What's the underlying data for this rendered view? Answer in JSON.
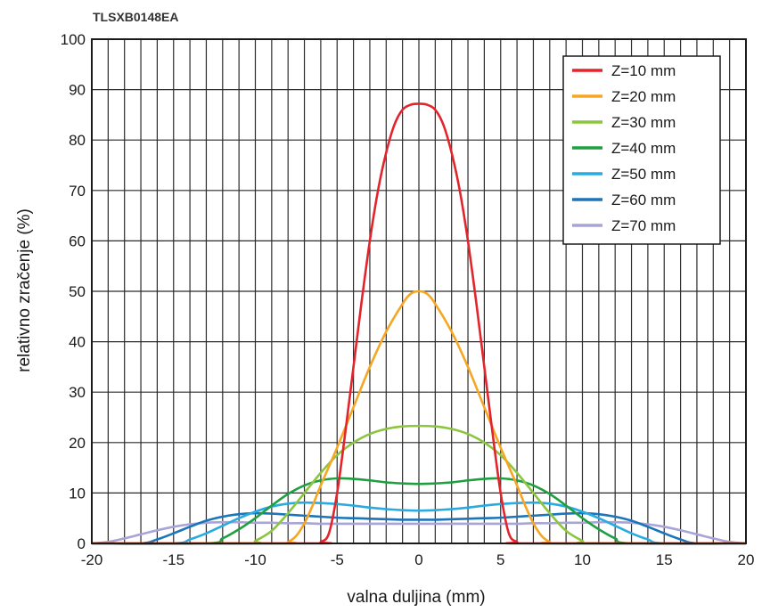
{
  "figure_code": "TLSXB0148EA",
  "chart_data": {
    "type": "line",
    "xlabel": "valna duljina (mm)",
    "ylabel": "relativno zračenje (%)",
    "xlim": [
      -20,
      20
    ],
    "ylim": [
      0,
      100
    ],
    "x_ticks": [
      -20,
      -15,
      -10,
      -5,
      0,
      5,
      10,
      15,
      20
    ],
    "y_ticks": [
      0,
      10,
      20,
      30,
      40,
      50,
      60,
      70,
      80,
      90,
      100
    ],
    "grid": true,
    "legend_position": "top-right",
    "series": [
      {
        "name": "Z=10 mm",
        "color": "#e3242b",
        "points": [
          [
            -20,
            0
          ],
          [
            -6.5,
            0
          ],
          [
            -6,
            0.3
          ],
          [
            -5.5,
            2
          ],
          [
            -5,
            10
          ],
          [
            -4.5,
            22
          ],
          [
            -4,
            35
          ],
          [
            -3.5,
            48
          ],
          [
            -3,
            60
          ],
          [
            -2.5,
            70
          ],
          [
            -2,
            77.5
          ],
          [
            -1.5,
            83
          ],
          [
            -1,
            86
          ],
          [
            -0.5,
            87
          ],
          [
            0,
            87.2
          ],
          [
            0.5,
            87
          ],
          [
            1,
            86
          ],
          [
            1.5,
            83
          ],
          [
            2,
            77.5
          ],
          [
            2.5,
            70
          ],
          [
            3,
            60
          ],
          [
            3.5,
            48
          ],
          [
            4,
            35
          ],
          [
            4.5,
            22
          ],
          [
            5,
            10
          ],
          [
            5.5,
            2
          ],
          [
            6,
            0.3
          ],
          [
            6.5,
            0
          ],
          [
            20,
            0
          ]
        ]
      },
      {
        "name": "Z=20 mm",
        "color": "#f5a623",
        "points": [
          [
            -20,
            0
          ],
          [
            -8.5,
            0
          ],
          [
            -8,
            0.3
          ],
          [
            -7.5,
            1.5
          ],
          [
            -7,
            4
          ],
          [
            -6.5,
            7.5
          ],
          [
            -6,
            11.5
          ],
          [
            -5,
            19
          ],
          [
            -4,
            27
          ],
          [
            -3,
            35
          ],
          [
            -2,
            42
          ],
          [
            -1,
            47.5
          ],
          [
            -0.5,
            49.5
          ],
          [
            0,
            50
          ],
          [
            0.5,
            49.5
          ],
          [
            1,
            47.5
          ],
          [
            2,
            42
          ],
          [
            3,
            35
          ],
          [
            4,
            27
          ],
          [
            5,
            19
          ],
          [
            6,
            11.5
          ],
          [
            6.5,
            7.5
          ],
          [
            7,
            4
          ],
          [
            7.5,
            1.5
          ],
          [
            8,
            0.3
          ],
          [
            8.5,
            0
          ],
          [
            20,
            0
          ]
        ]
      },
      {
        "name": "Z=30 mm",
        "color": "#8cc63f",
        "points": [
          [
            -20,
            0
          ],
          [
            -10.5,
            0
          ],
          [
            -10,
            0.5
          ],
          [
            -9,
            2.5
          ],
          [
            -8,
            6
          ],
          [
            -7,
            10
          ],
          [
            -6,
            14
          ],
          [
            -5,
            17.5
          ],
          [
            -4,
            20
          ],
          [
            -3,
            21.7
          ],
          [
            -2,
            22.7
          ],
          [
            -1,
            23.2
          ],
          [
            0,
            23.3
          ],
          [
            1,
            23.2
          ],
          [
            2,
            22.7
          ],
          [
            3,
            21.7
          ],
          [
            4,
            20
          ],
          [
            5,
            17.5
          ],
          [
            6,
            14
          ],
          [
            7,
            10
          ],
          [
            8,
            6
          ],
          [
            9,
            2.5
          ],
          [
            10,
            0.5
          ],
          [
            10.5,
            0
          ],
          [
            20,
            0
          ]
        ]
      },
      {
        "name": "Z=40 mm",
        "color": "#1fa040",
        "points": [
          [
            -20,
            0
          ],
          [
            -13,
            0
          ],
          [
            -12,
            1
          ],
          [
            -11,
            2.8
          ],
          [
            -10,
            5
          ],
          [
            -9,
            7.5
          ],
          [
            -8,
            9.8
          ],
          [
            -7,
            11.5
          ],
          [
            -6,
            12.5
          ],
          [
            -5,
            12.9
          ],
          [
            -4,
            12.8
          ],
          [
            -3,
            12.5
          ],
          [
            -2,
            12.1
          ],
          [
            -1,
            11.9
          ],
          [
            0,
            11.8
          ],
          [
            1,
            11.9
          ],
          [
            2,
            12.1
          ],
          [
            3,
            12.5
          ],
          [
            4,
            12.8
          ],
          [
            5,
            12.9
          ],
          [
            6,
            12.5
          ],
          [
            7,
            11.5
          ],
          [
            8,
            9.8
          ],
          [
            9,
            7.5
          ],
          [
            10,
            5
          ],
          [
            11,
            2.8
          ],
          [
            12,
            1
          ],
          [
            13,
            0
          ],
          [
            20,
            0
          ]
        ]
      },
      {
        "name": "Z=50 mm",
        "color": "#29abe2",
        "points": [
          [
            -20,
            0
          ],
          [
            -15,
            0
          ],
          [
            -14,
            0.8
          ],
          [
            -13,
            2
          ],
          [
            -12,
            3.5
          ],
          [
            -11,
            5
          ],
          [
            -10,
            6.3
          ],
          [
            -9,
            7.3
          ],
          [
            -8,
            7.9
          ],
          [
            -7,
            8.1
          ],
          [
            -6,
            8
          ],
          [
            -5,
            7.8
          ],
          [
            -4,
            7.5
          ],
          [
            -3,
            7.1
          ],
          [
            -2,
            6.8
          ],
          [
            -1,
            6.6
          ],
          [
            0,
            6.5
          ],
          [
            1,
            6.6
          ],
          [
            2,
            6.8
          ],
          [
            3,
            7.1
          ],
          [
            4,
            7.5
          ],
          [
            5,
            7.8
          ],
          [
            6,
            8
          ],
          [
            7,
            8.1
          ],
          [
            8,
            7.9
          ],
          [
            9,
            7.3
          ],
          [
            10,
            6.3
          ],
          [
            11,
            5
          ],
          [
            12,
            3.5
          ],
          [
            13,
            2
          ],
          [
            14,
            0.8
          ],
          [
            15,
            0
          ],
          [
            20,
            0
          ]
        ]
      },
      {
        "name": "Z=60 mm",
        "color": "#1b75bb",
        "points": [
          [
            -20,
            0
          ],
          [
            -17,
            0
          ],
          [
            -16,
            0.8
          ],
          [
            -15,
            2
          ],
          [
            -14,
            3.3
          ],
          [
            -13,
            4.5
          ],
          [
            -12,
            5.3
          ],
          [
            -11,
            5.8
          ],
          [
            -10,
            6
          ],
          [
            -9,
            5.9
          ],
          [
            -8,
            5.7
          ],
          [
            -7,
            5.5
          ],
          [
            -6,
            5.3
          ],
          [
            -5,
            5.1
          ],
          [
            -4,
            5
          ],
          [
            -3,
            4.9
          ],
          [
            -2,
            4.8
          ],
          [
            -1,
            4.7
          ],
          [
            0,
            4.7
          ],
          [
            1,
            4.7
          ],
          [
            2,
            4.8
          ],
          [
            3,
            4.9
          ],
          [
            4,
            5
          ],
          [
            5,
            5.1
          ],
          [
            6,
            5.3
          ],
          [
            7,
            5.5
          ],
          [
            8,
            5.7
          ],
          [
            9,
            5.9
          ],
          [
            10,
            6
          ],
          [
            11,
            5.8
          ],
          [
            12,
            5.3
          ],
          [
            13,
            4.5
          ],
          [
            14,
            3.3
          ],
          [
            15,
            2
          ],
          [
            16,
            0.8
          ],
          [
            17,
            0
          ],
          [
            20,
            0
          ]
        ]
      },
      {
        "name": "Z=70 mm",
        "color": "#a8a4d8",
        "points": [
          [
            -20,
            0
          ],
          [
            -19,
            0.3
          ],
          [
            -18,
            1
          ],
          [
            -17,
            1.8
          ],
          [
            -16,
            2.6
          ],
          [
            -15,
            3.3
          ],
          [
            -14,
            3.8
          ],
          [
            -13,
            4.1
          ],
          [
            -12,
            4.2
          ],
          [
            -11,
            4.2
          ],
          [
            -10,
            4.1
          ],
          [
            -9,
            4.1
          ],
          [
            -8,
            4
          ],
          [
            -7,
            4
          ],
          [
            -6,
            3.9
          ],
          [
            -5,
            3.9
          ],
          [
            -4,
            3.9
          ],
          [
            -3,
            3.9
          ],
          [
            -2,
            3.9
          ],
          [
            -1,
            3.9
          ],
          [
            0,
            3.9
          ],
          [
            1,
            3.9
          ],
          [
            2,
            3.9
          ],
          [
            3,
            3.9
          ],
          [
            4,
            3.9
          ],
          [
            5,
            3.9
          ],
          [
            6,
            3.9
          ],
          [
            7,
            4
          ],
          [
            8,
            4
          ],
          [
            9,
            4.1
          ],
          [
            10,
            4.1
          ],
          [
            11,
            4.2
          ],
          [
            12,
            4.2
          ],
          [
            13,
            4.1
          ],
          [
            14,
            3.8
          ],
          [
            15,
            3.3
          ],
          [
            16,
            2.6
          ],
          [
            17,
            1.8
          ],
          [
            18,
            1
          ],
          [
            19,
            0.3
          ],
          [
            20,
            0
          ]
        ]
      }
    ]
  }
}
